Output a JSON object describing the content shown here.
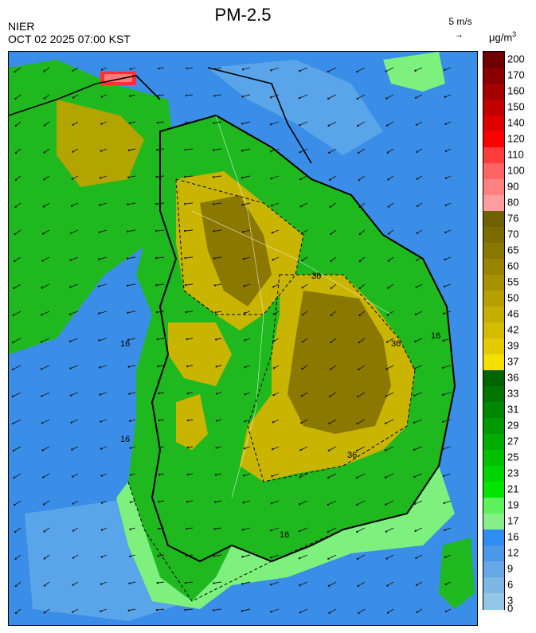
{
  "header": {
    "title": "PM-2.5",
    "agency": "NIER",
    "datetime": "OCT 02 2025 07:00 KST"
  },
  "wind_reference": {
    "label": "5 m/s",
    "arrow": "→"
  },
  "legend": {
    "unit_base": "μg/m",
    "unit_exp": "3",
    "bins": [
      {
        "label": "200",
        "color": "#6e0000"
      },
      {
        "label": "170",
        "color": "#8a0000"
      },
      {
        "label": "160",
        "color": "#a50000"
      },
      {
        "label": "150",
        "color": "#c10000"
      },
      {
        "label": "140",
        "color": "#df0000"
      },
      {
        "label": "120",
        "color": "#ff0000"
      },
      {
        "label": "110",
        "color": "#ff3c3c"
      },
      {
        "label": "100",
        "color": "#ff6464"
      },
      {
        "label": "90",
        "color": "#ff8282"
      },
      {
        "label": "80",
        "color": "#ff9e9e"
      },
      {
        "label": "76",
        "color": "#6f6000"
      },
      {
        "label": "70",
        "color": "#7c6c00"
      },
      {
        "label": "65",
        "color": "#897800"
      },
      {
        "label": "60",
        "color": "#978500"
      },
      {
        "label": "55",
        "color": "#a69200"
      },
      {
        "label": "50",
        "color": "#b5a000"
      },
      {
        "label": "46",
        "color": "#c4ae00"
      },
      {
        "label": "42",
        "color": "#d3bc00"
      },
      {
        "label": "39",
        "color": "#e2cb00"
      },
      {
        "label": "37",
        "color": "#f2e000"
      },
      {
        "label": "36",
        "color": "#006400"
      },
      {
        "label": "33",
        "color": "#007500"
      },
      {
        "label": "31",
        "color": "#008700"
      },
      {
        "label": "29",
        "color": "#009900"
      },
      {
        "label": "27",
        "color": "#00ad00"
      },
      {
        "label": "25",
        "color": "#00c000"
      },
      {
        "label": "23",
        "color": "#00d400"
      },
      {
        "label": "21",
        "color": "#00e600"
      },
      {
        "label": "19",
        "color": "#5cf25c"
      },
      {
        "label": "17",
        "color": "#88f088"
      },
      {
        "label": "16",
        "color": "#2f8cf2"
      },
      {
        "label": "12",
        "color": "#4a98e8"
      },
      {
        "label": "9",
        "color": "#66a8e6"
      },
      {
        "label": "6",
        "color": "#7eb6e4"
      },
      {
        "label": "3",
        "color": "#94c6e6"
      },
      {
        "label": "0",
        "color": ""
      }
    ]
  },
  "map": {
    "region": "Korean Peninsula (South Korea)",
    "contour_labels": [
      "16",
      "36"
    ],
    "category_colors": {
      "good": "#3a8ee8",
      "moderate": "#2fc32f",
      "moderate_light": "#7df07d",
      "unhealthy": "#c9b400",
      "unhealthy_dark": "#8a7800",
      "very_unhealthy": "#ff3030"
    }
  }
}
